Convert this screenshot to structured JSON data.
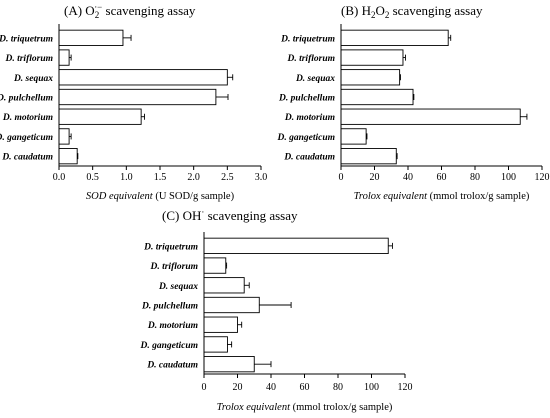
{
  "chart_data": [
    {
      "type": "bar",
      "orientation": "horizontal",
      "title": "(A) O2·− scavenging assay",
      "title_parts": {
        "prefix": "(A) O",
        "sub": "2",
        "sup": "·−",
        "suffix": " scavenging assay"
      },
      "categories": [
        "D. triquetrum",
        "D. triflorum",
        "D. sequax",
        "D. pulchellum",
        "D. motorium",
        "D. gangeticum",
        "D. caudatum"
      ],
      "values": [
        0.95,
        0.15,
        2.5,
        2.33,
        1.22,
        0.15,
        0.27
      ],
      "errors": [
        0.12,
        0.03,
        0.08,
        0.18,
        0.05,
        0.03,
        0.01
      ],
      "xlim": [
        0,
        3.0
      ],
      "ticks": [
        "0.0",
        "0.5",
        "1.0",
        "1.5",
        "2.0",
        "2.5",
        "3.0"
      ],
      "xlabel": {
        "italic": "SOD equivalent",
        "normal": " (U SOD/g sample)"
      },
      "grid": false
    },
    {
      "type": "bar",
      "orientation": "horizontal",
      "title": "(B) H2O2 scavenging assay",
      "title_parts": {
        "prefix": "(B) H",
        "sub": "2",
        "mid": "O",
        "sub2": "2",
        "suffix": " scavenging assay"
      },
      "categories": [
        "D. triquetrum",
        "D. triflorum",
        "D. sequax",
        "D. pulchellum",
        "D. motorium",
        "D. gangeticum",
        "D. caudatum"
      ],
      "values": [
        64,
        37,
        35,
        43,
        107,
        15,
        33
      ],
      "errors": [
        1.5,
        1.5,
        0.5,
        0.5,
        4,
        0.5,
        0.5
      ],
      "xlim": [
        0,
        120
      ],
      "ticks": [
        "0",
        "20",
        "40",
        "60",
        "80",
        "100",
        "120"
      ],
      "xlabel": {
        "italic": "Trolox equivalent",
        "normal": " (mmol trolox/g sample)"
      },
      "grid": false
    },
    {
      "type": "bar",
      "orientation": "horizontal",
      "title": "(C) OH· scavenging assay",
      "title_parts": {
        "prefix": "(C) OH",
        "sup": "·",
        "suffix": " scavenging assay"
      },
      "categories": [
        "D. triquetrum",
        "D. triflorum",
        "D. sequax",
        "D. pulchellum",
        "D. motorium",
        "D. gangeticum",
        "D. caudatum"
      ],
      "values": [
        110,
        13,
        24,
        33,
        20,
        14,
        30
      ],
      "errors": [
        2.5,
        0.5,
        3,
        19,
        2.5,
        2.5,
        10
      ],
      "xlim": [
        0,
        120
      ],
      "ticks": [
        "0",
        "20",
        "40",
        "60",
        "80",
        "100",
        "120"
      ],
      "xlabel": {
        "italic": "Trolox equivalent",
        "normal": " (mmol trolox/g sample)"
      },
      "grid": false
    }
  ]
}
